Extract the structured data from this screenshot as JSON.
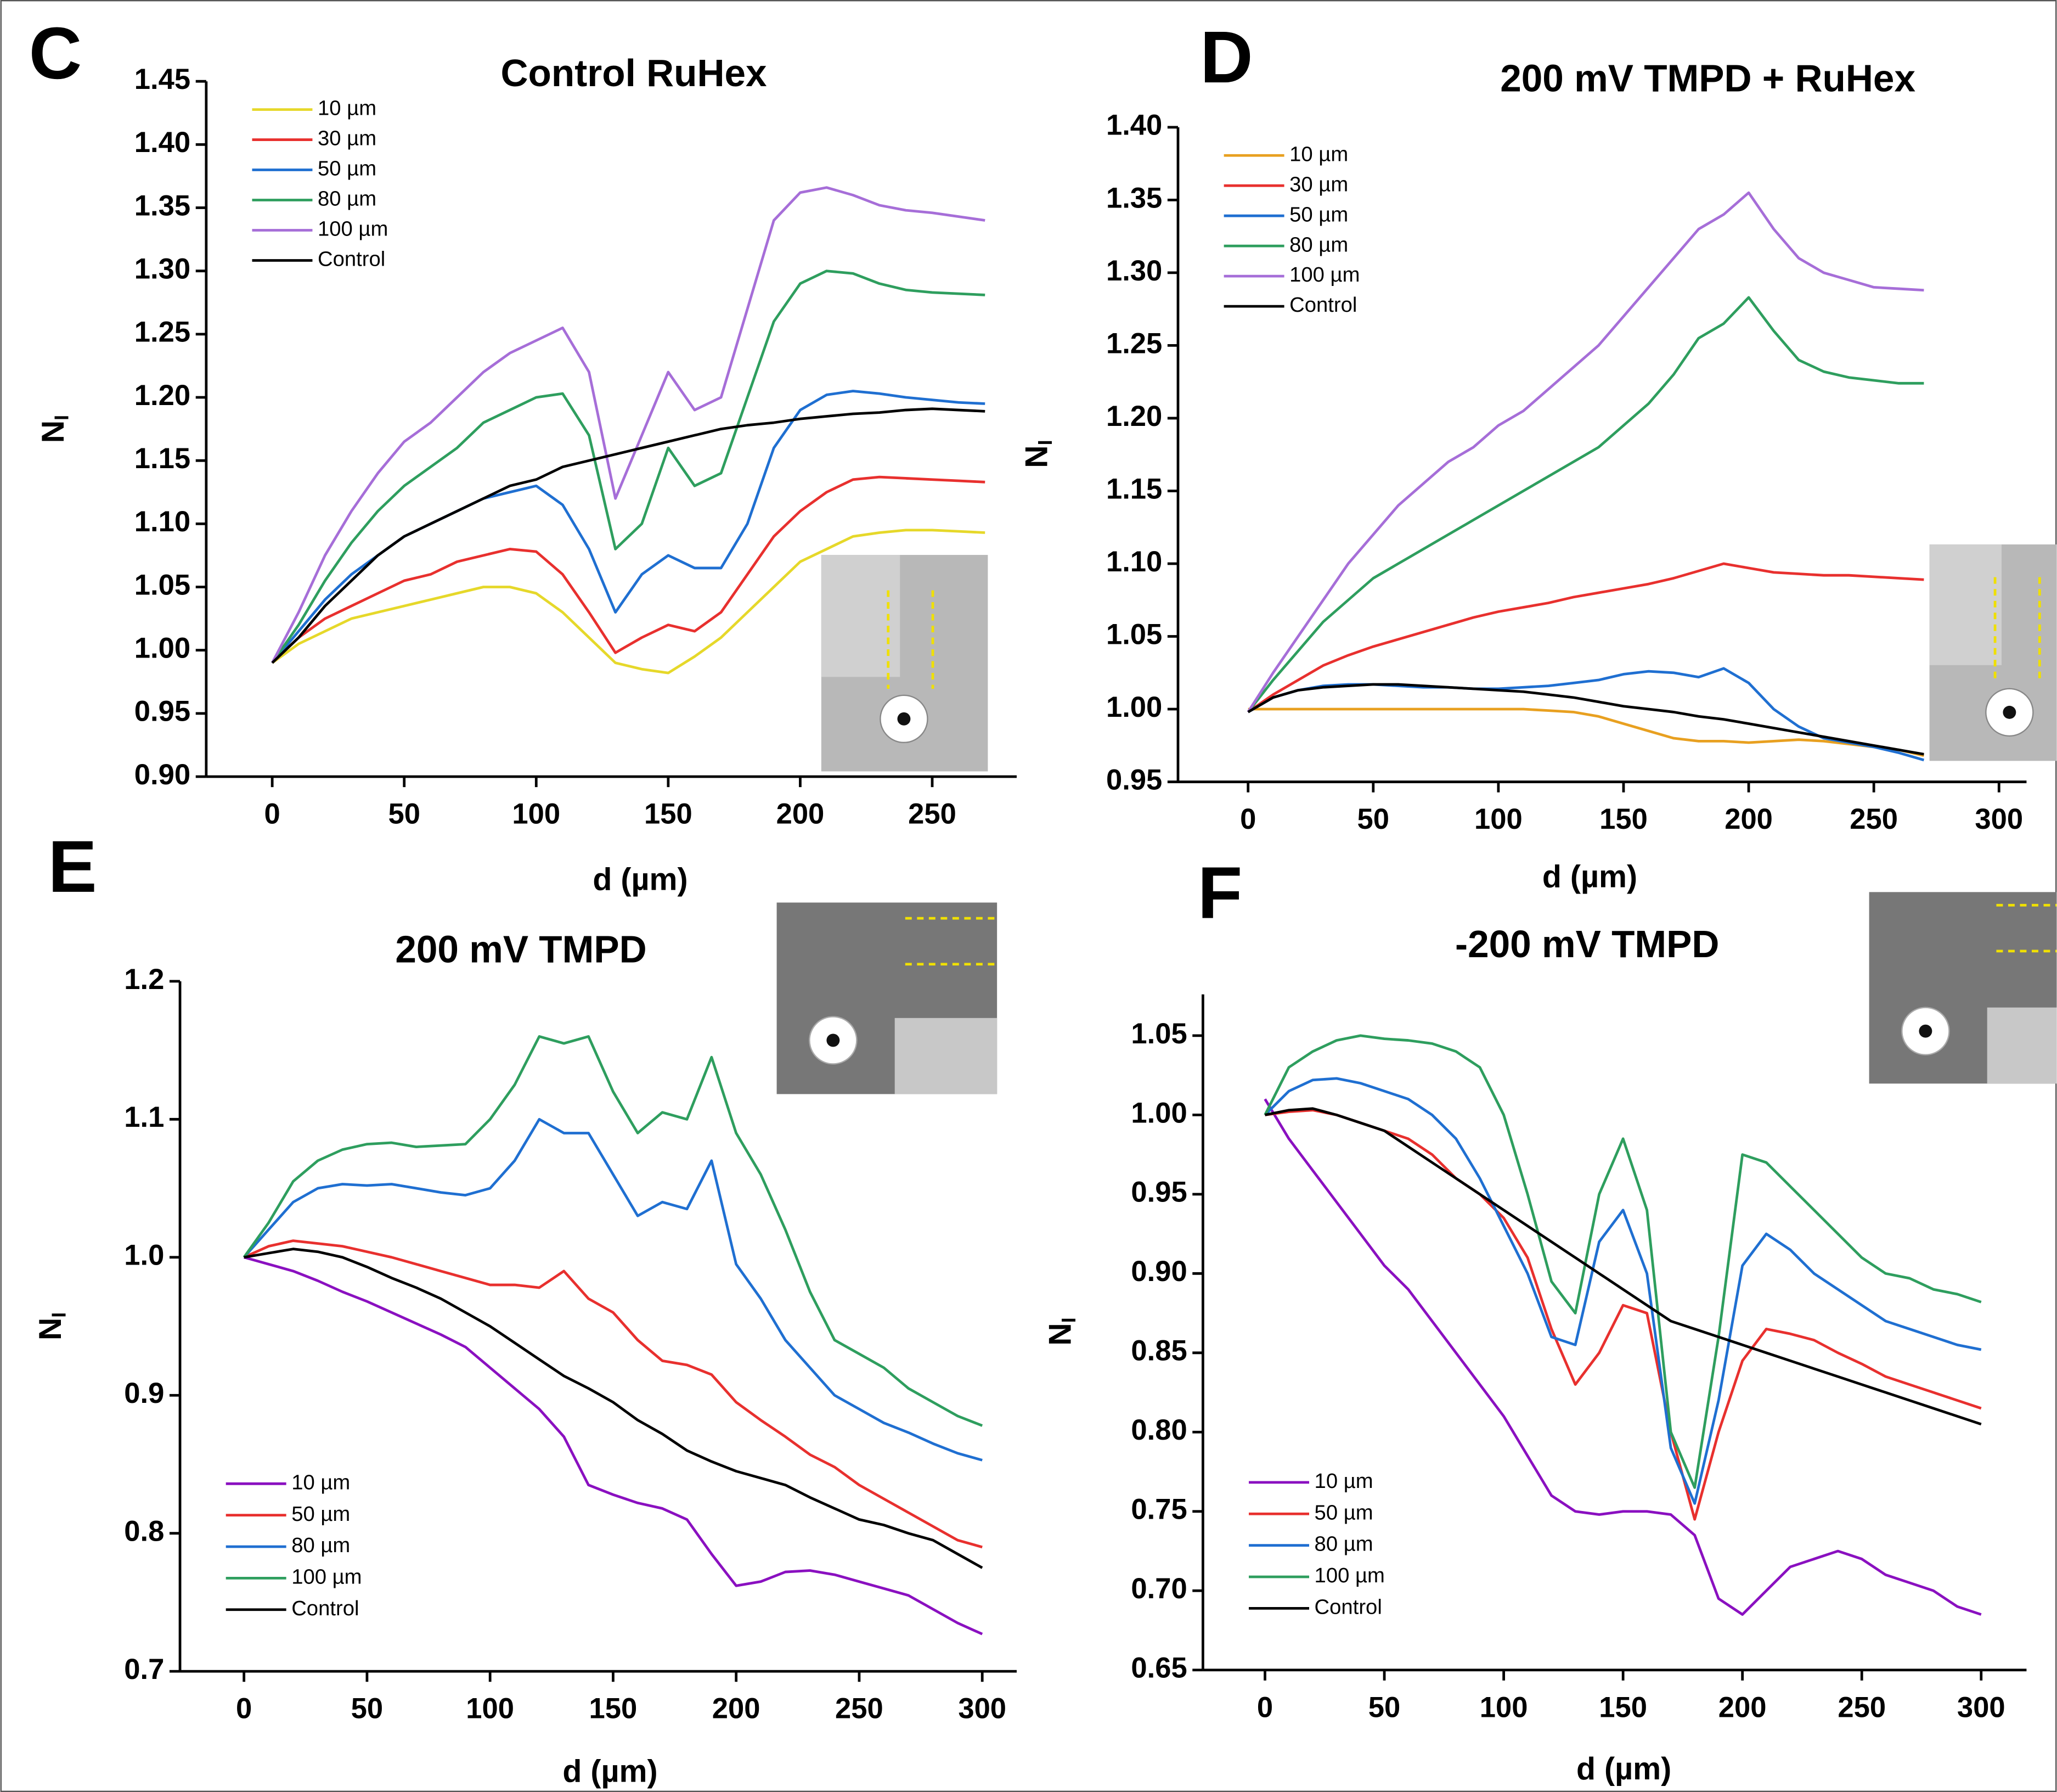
{
  "chart_data": [
    {
      "type": "line",
      "panel": "C",
      "title": "Control RuHex",
      "xlabel": "d (µm)",
      "ylabel": "N",
      "ylabel_sub": "I",
      "legend": "upper left",
      "xlim": [
        -25,
        282
      ],
      "xticks": [
        0,
        50,
        100,
        150,
        200,
        250
      ],
      "ylim": [
        0.9,
        1.45
      ],
      "yticks": [
        {
          "value": 0.9,
          "label": "0.90"
        },
        0.95,
        {
          "value": 1.0,
          "label": "1.00"
        },
        1.05,
        {
          "value": 1.1,
          "label": "1.10"
        },
        1.15,
        {
          "value": 1.2,
          "label": "1.20"
        },
        1.25,
        {
          "value": 1.3,
          "label": "1.30"
        },
        1.35,
        {
          "value": 1.4,
          "label": "1.40"
        },
        1.45
      ],
      "x": [
        0,
        10,
        20,
        30,
        40,
        50,
        60,
        70,
        80,
        90,
        100,
        110,
        120,
        130,
        140,
        150,
        160,
        170,
        180,
        190,
        200,
        210,
        220,
        230,
        240,
        250,
        260,
        270
      ],
      "series": [
        {
          "name": "10 µm",
          "color": "#e6d82a",
          "values": [
            0.99,
            1.005,
            1.015,
            1.025,
            1.03,
            1.035,
            1.04,
            1.045,
            1.05,
            1.05,
            1.045,
            1.03,
            1.01,
            0.99,
            0.985,
            0.982,
            0.995,
            1.01,
            1.03,
            1.05,
            1.07,
            1.08,
            1.09,
            1.093,
            1.095,
            1.095,
            1.094,
            1.093
          ]
        },
        {
          "name": "30 µm",
          "color": "#e8302e",
          "values": [
            0.99,
            1.01,
            1.025,
            1.035,
            1.045,
            1.055,
            1.06,
            1.07,
            1.075,
            1.08,
            1.078,
            1.06,
            1.03,
            0.998,
            1.01,
            1.02,
            1.015,
            1.03,
            1.06,
            1.09,
            1.11,
            1.125,
            1.135,
            1.137,
            1.136,
            1.135,
            1.134,
            1.133
          ]
        },
        {
          "name": "50 µm",
          "color": "#1f6fd1",
          "values": [
            0.99,
            1.015,
            1.04,
            1.06,
            1.075,
            1.09,
            1.1,
            1.11,
            1.12,
            1.125,
            1.13,
            1.115,
            1.08,
            1.03,
            1.06,
            1.075,
            1.065,
            1.065,
            1.1,
            1.16,
            1.19,
            1.202,
            1.205,
            1.203,
            1.2,
            1.198,
            1.196,
            1.195
          ]
        },
        {
          "name": "80 µm",
          "color": "#2e9e5e",
          "values": [
            0.99,
            1.02,
            1.055,
            1.085,
            1.11,
            1.13,
            1.145,
            1.16,
            1.18,
            1.19,
            1.2,
            1.203,
            1.17,
            1.08,
            1.1,
            1.16,
            1.13,
            1.14,
            1.2,
            1.26,
            1.29,
            1.3,
            1.298,
            1.29,
            1.285,
            1.283,
            1.282,
            1.281
          ]
        },
        {
          "name": "100 µm",
          "color": "#a66ed8",
          "values": [
            0.99,
            1.03,
            1.075,
            1.11,
            1.14,
            1.165,
            1.18,
            1.2,
            1.22,
            1.235,
            1.245,
            1.255,
            1.22,
            1.12,
            1.17,
            1.22,
            1.19,
            1.2,
            1.27,
            1.34,
            1.362,
            1.366,
            1.36,
            1.352,
            1.348,
            1.346,
            1.343,
            1.34
          ]
        },
        {
          "name": "Control",
          "color": "#000000",
          "values": [
            0.99,
            1.01,
            1.035,
            1.055,
            1.075,
            1.09,
            1.1,
            1.11,
            1.12,
            1.13,
            1.135,
            1.145,
            1.15,
            1.155,
            1.16,
            1.165,
            1.17,
            1.175,
            1.178,
            1.18,
            1.183,
            1.185,
            1.187,
            1.188,
            1.19,
            1.191,
            1.19,
            1.189
          ]
        }
      ]
    },
    {
      "type": "line",
      "panel": "D",
      "title": "200 mV TMPD + RuHex",
      "xlabel": "d (µm)",
      "ylabel": "N",
      "ylabel_sub": "I",
      "legend": "upper left",
      "xlim": [
        -28,
        311
      ],
      "xticks": [
        0,
        50,
        100,
        150,
        200,
        250,
        300
      ],
      "ylim": [
        0.95,
        1.4
      ],
      "yticks": [
        0.95,
        {
          "value": 1.0,
          "label": "1.00"
        },
        1.05,
        {
          "value": 1.1,
          "label": "1.10"
        },
        1.15,
        {
          "value": 1.2,
          "label": "1.20"
        },
        1.25,
        {
          "value": 1.3,
          "label": "1.30"
        },
        1.35,
        {
          "value": 1.4,
          "label": "1.40"
        }
      ],
      "x": [
        0,
        10,
        20,
        30,
        40,
        50,
        60,
        70,
        80,
        90,
        100,
        110,
        120,
        130,
        140,
        150,
        160,
        170,
        180,
        190,
        200,
        210,
        220,
        230,
        240,
        250,
        260,
        270
      ],
      "series": [
        {
          "name": "10 µm",
          "color": "#e8a020",
          "values": [
            1.0,
            1.0,
            1.0,
            1.0,
            1.0,
            1.0,
            1.0,
            1.0,
            1.0,
            1.0,
            1.0,
            1.0,
            0.999,
            0.998,
            0.995,
            0.99,
            0.985,
            0.98,
            0.978,
            0.978,
            0.977,
            0.978,
            0.979,
            0.978,
            0.976,
            0.974,
            0.972,
            0.968
          ]
        },
        {
          "name": "30 µm",
          "color": "#e8302e",
          "values": [
            0.998,
            1.01,
            1.02,
            1.03,
            1.037,
            1.043,
            1.048,
            1.053,
            1.058,
            1.063,
            1.067,
            1.07,
            1.073,
            1.077,
            1.08,
            1.083,
            1.086,
            1.09,
            1.095,
            1.1,
            1.097,
            1.094,
            1.093,
            1.092,
            1.092,
            1.091,
            1.09,
            1.089
          ]
        },
        {
          "name": "50 µm",
          "color": "#1f6fd1",
          "values": [
            0.998,
            1.008,
            1.013,
            1.016,
            1.017,
            1.017,
            1.016,
            1.015,
            1.015,
            1.014,
            1.014,
            1.015,
            1.016,
            1.018,
            1.02,
            1.024,
            1.026,
            1.025,
            1.022,
            1.028,
            1.018,
            1.0,
            0.988,
            0.98,
            0.977,
            0.974,
            0.97,
            0.965
          ]
        },
        {
          "name": "80 µm",
          "color": "#2e9e5e",
          "values": [
            0.998,
            1.02,
            1.04,
            1.06,
            1.075,
            1.09,
            1.1,
            1.11,
            1.12,
            1.13,
            1.14,
            1.15,
            1.16,
            1.17,
            1.18,
            1.195,
            1.21,
            1.23,
            1.255,
            1.265,
            1.283,
            1.26,
            1.24,
            1.232,
            1.228,
            1.226,
            1.224,
            1.224
          ]
        },
        {
          "name": "100 µm",
          "color": "#a66ed8",
          "values": [
            0.998,
            1.025,
            1.05,
            1.075,
            1.1,
            1.12,
            1.14,
            1.155,
            1.17,
            1.18,
            1.195,
            1.205,
            1.22,
            1.235,
            1.25,
            1.27,
            1.29,
            1.31,
            1.33,
            1.34,
            1.355,
            1.33,
            1.31,
            1.3,
            1.295,
            1.29,
            1.289,
            1.288
          ]
        },
        {
          "name": "Control",
          "color": "#000000",
          "values": [
            0.998,
            1.008,
            1.013,
            1.015,
            1.016,
            1.017,
            1.017,
            1.016,
            1.015,
            1.014,
            1.013,
            1.012,
            1.01,
            1.008,
            1.005,
            1.002,
            1.0,
            0.998,
            0.995,
            0.993,
            0.99,
            0.987,
            0.984,
            0.981,
            0.978,
            0.975,
            0.972,
            0.969
          ]
        }
      ]
    },
    {
      "type": "line",
      "panel": "E",
      "title": "200 mV TMPD",
      "xlabel": "d (µm)",
      "ylabel": "N",
      "ylabel_sub": "I",
      "legend": "lower left",
      "xlim": [
        -26,
        314
      ],
      "xticks": [
        0,
        50,
        100,
        150,
        200,
        250,
        300
      ],
      "ylim": [
        0.7,
        1.2
      ],
      "yticks": [
        0.7,
        0.8,
        0.9,
        {
          "value": 1.0,
          "label": "1.0"
        },
        1.1,
        1.2
      ],
      "x": [
        0,
        10,
        20,
        30,
        40,
        50,
        60,
        70,
        80,
        90,
        100,
        110,
        120,
        130,
        140,
        150,
        160,
        170,
        180,
        190,
        200,
        210,
        220,
        230,
        240,
        250,
        260,
        270,
        280,
        290,
        300
      ],
      "series": [
        {
          "name": "10 µm",
          "color": "#8a10c0",
          "values": [
            1.0,
            0.995,
            0.99,
            0.983,
            0.975,
            0.968,
            0.96,
            0.952,
            0.944,
            0.935,
            0.92,
            0.905,
            0.89,
            0.87,
            0.835,
            0.828,
            0.822,
            0.818,
            0.81,
            0.785,
            0.762,
            0.765,
            0.772,
            0.773,
            0.77,
            0.765,
            0.76,
            0.755,
            0.745,
            0.735,
            0.727
          ]
        },
        {
          "name": "50 µm",
          "color": "#e8302e",
          "values": [
            1.0,
            1.008,
            1.012,
            1.01,
            1.008,
            1.004,
            1.0,
            0.995,
            0.99,
            0.985,
            0.98,
            0.98,
            0.978,
            0.99,
            0.97,
            0.96,
            0.94,
            0.925,
            0.922,
            0.915,
            0.895,
            0.882,
            0.87,
            0.857,
            0.848,
            0.835,
            0.825,
            0.815,
            0.805,
            0.795,
            0.79
          ]
        },
        {
          "name": "80 µm",
          "color": "#1f6fd1",
          "values": [
            1.0,
            1.02,
            1.04,
            1.05,
            1.053,
            1.052,
            1.053,
            1.05,
            1.047,
            1.045,
            1.05,
            1.07,
            1.1,
            1.09,
            1.09,
            1.06,
            1.03,
            1.04,
            1.035,
            1.07,
            0.995,
            0.97,
            0.94,
            0.92,
            0.9,
            0.89,
            0.88,
            0.873,
            0.865,
            0.858,
            0.853
          ]
        },
        {
          "name": "100 µm",
          "color": "#2e9e5e",
          "values": [
            1.0,
            1.025,
            1.055,
            1.07,
            1.078,
            1.082,
            1.083,
            1.08,
            1.081,
            1.082,
            1.1,
            1.125,
            1.16,
            1.155,
            1.16,
            1.12,
            1.09,
            1.105,
            1.1,
            1.145,
            1.09,
            1.06,
            1.02,
            0.975,
            0.94,
            0.93,
            0.92,
            0.905,
            0.895,
            0.885,
            0.878
          ]
        },
        {
          "name": "Control",
          "color": "#000000",
          "values": [
            1.0,
            1.003,
            1.006,
            1.004,
            1.0,
            0.993,
            0.985,
            0.978,
            0.97,
            0.96,
            0.95,
            0.938,
            0.926,
            0.914,
            0.905,
            0.895,
            0.882,
            0.872,
            0.86,
            0.852,
            0.845,
            0.84,
            0.835,
            0.826,
            0.818,
            0.81,
            0.806,
            0.8,
            0.795,
            0.785,
            0.775
          ]
        }
      ]
    },
    {
      "type": "line",
      "panel": "F",
      "title": "-200 mV TMPD",
      "xlabel": "d (µm)",
      "ylabel": "N",
      "ylabel_sub": "I",
      "legend": "lower left",
      "xlim": [
        -26,
        319
      ],
      "xticks": [
        0,
        50,
        100,
        150,
        200,
        250,
        300
      ],
      "ylim": [
        0.65,
        1.076
      ],
      "yticks": [
        0.65,
        {
          "value": 0.7,
          "label": "0.70"
        },
        0.75,
        {
          "value": 0.8,
          "label": "0.80"
        },
        0.85,
        {
          "value": 0.9,
          "label": "0.90"
        },
        0.95,
        {
          "value": 1.0,
          "label": "1.00"
        },
        1.05
      ],
      "x": [
        0,
        10,
        20,
        30,
        40,
        50,
        60,
        70,
        80,
        90,
        100,
        110,
        120,
        130,
        140,
        150,
        160,
        170,
        180,
        190,
        200,
        210,
        220,
        230,
        240,
        250,
        260,
        270,
        280,
        290,
        300
      ],
      "series": [
        {
          "name": "10 µm",
          "color": "#8a10c0",
          "values": [
            1.01,
            0.985,
            0.965,
            0.945,
            0.925,
            0.905,
            0.89,
            0.87,
            0.85,
            0.83,
            0.81,
            0.785,
            0.76,
            0.75,
            0.748,
            0.75,
            0.75,
            0.748,
            0.735,
            0.695,
            0.685,
            0.7,
            0.715,
            0.72,
            0.725,
            0.72,
            0.71,
            0.705,
            0.7,
            0.69,
            0.685
          ]
        },
        {
          "name": "50 µm",
          "color": "#e8302e",
          "values": [
            1.0,
            1.002,
            1.003,
            1.0,
            0.995,
            0.99,
            0.985,
            0.975,
            0.96,
            0.95,
            0.935,
            0.91,
            0.865,
            0.83,
            0.85,
            0.88,
            0.875,
            0.8,
            0.745,
            0.8,
            0.845,
            0.865,
            0.862,
            0.858,
            0.85,
            0.843,
            0.835,
            0.83,
            0.825,
            0.82,
            0.815
          ]
        },
        {
          "name": "80 µm",
          "color": "#1f6fd1",
          "values": [
            1.0,
            1.015,
            1.022,
            1.023,
            1.02,
            1.015,
            1.01,
            1.0,
            0.985,
            0.96,
            0.93,
            0.9,
            0.86,
            0.855,
            0.92,
            0.94,
            0.9,
            0.79,
            0.755,
            0.82,
            0.905,
            0.925,
            0.915,
            0.9,
            0.89,
            0.88,
            0.87,
            0.865,
            0.86,
            0.855,
            0.852
          ]
        },
        {
          "name": "100 µm",
          "color": "#2e9e5e",
          "values": [
            1.0,
            1.03,
            1.04,
            1.047,
            1.05,
            1.048,
            1.047,
            1.045,
            1.04,
            1.03,
            1.0,
            0.95,
            0.895,
            0.875,
            0.95,
            0.985,
            0.94,
            0.8,
            0.765,
            0.86,
            0.975,
            0.97,
            0.955,
            0.94,
            0.925,
            0.91,
            0.9,
            0.897,
            0.89,
            0.887,
            0.882
          ]
        },
        {
          "name": "Control",
          "color": "#000000",
          "values": [
            1.0,
            1.003,
            1.004,
            1.0,
            0.995,
            0.99,
            0.98,
            0.97,
            0.96,
            0.95,
            0.94,
            0.93,
            0.92,
            0.91,
            0.9,
            0.89,
            0.88,
            0.87,
            0.865,
            0.86,
            0.855,
            0.85,
            0.845,
            0.84,
            0.835,
            0.83,
            0.825,
            0.82,
            0.815,
            0.81,
            0.805
          ]
        }
      ]
    }
  ]
}
